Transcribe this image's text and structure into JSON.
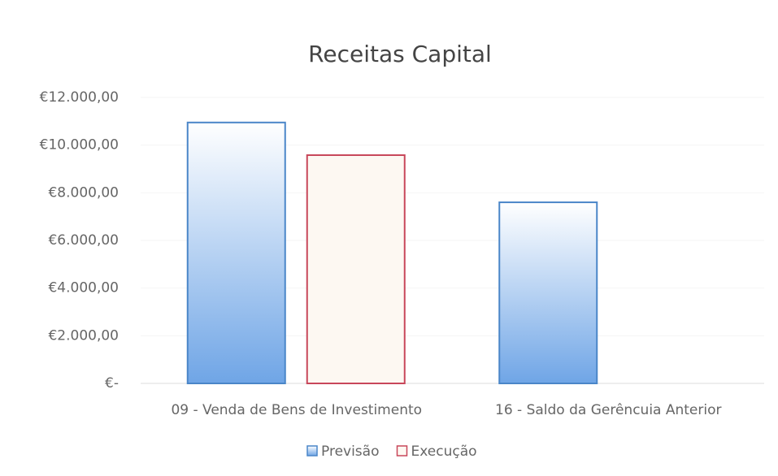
{
  "chart_data": {
    "type": "bar",
    "title": "Receitas Capital",
    "categories": [
      "09 - Venda de Bens de Investimento",
      "16 - Saldo da Gerêncuia Anterior"
    ],
    "series": [
      {
        "name": "Previsão",
        "color": "#4a86c8",
        "values": [
          10950,
          7600
        ]
      },
      {
        "name": "Execução",
        "color": "#c8475a",
        "values": [
          9580,
          0
        ]
      }
    ],
    "ylim": [
      0,
      12000
    ],
    "yticks": [
      {
        "value": 0,
        "label": "€-"
      },
      {
        "value": 2000,
        "label": "€2.000,00"
      },
      {
        "value": 4000,
        "label": "€4.000,00"
      },
      {
        "value": 6000,
        "label": "€6.000,00"
      },
      {
        "value": 8000,
        "label": "€8.000,00"
      },
      {
        "value": 10000,
        "label": "€10.000,00"
      },
      {
        "value": 12000,
        "label": "€12.000,00"
      }
    ],
    "legend": "bottom"
  }
}
